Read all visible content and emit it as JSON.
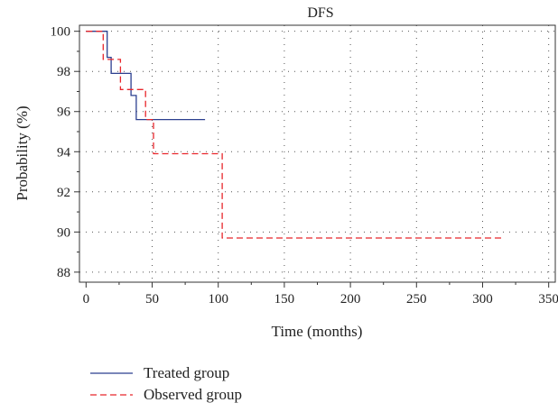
{
  "chart_data": {
    "type": "line",
    "title": "DFS",
    "xlabel": "Time (months)",
    "ylabel": "Probability (%)",
    "xlim": [
      -5,
      355
    ],
    "ylim": [
      87.5,
      100.3
    ],
    "x_ticks": [
      0,
      50,
      100,
      150,
      200,
      250,
      300,
      350
    ],
    "y_ticks": [
      88,
      90,
      92,
      94,
      96,
      98,
      100
    ],
    "x_tick_labels": [
      "0",
      "50",
      "100",
      "150",
      "200",
      "250",
      "300",
      "350"
    ],
    "y_tick_labels": [
      "88",
      "90",
      "92",
      "94",
      "96",
      "98",
      "100"
    ],
    "grid": true,
    "grid_style": "dotted",
    "legend_position": "bottom-left",
    "series": [
      {
        "name": "Treated group",
        "color": "#2b3f8f",
        "dash": "solid",
        "step_points": [
          [
            0,
            100
          ],
          [
            16,
            100
          ],
          [
            16,
            98.7
          ],
          [
            19,
            98.7
          ],
          [
            19,
            97.9
          ],
          [
            34,
            97.9
          ],
          [
            34,
            96.8
          ],
          [
            38,
            96.8
          ],
          [
            38,
            95.6
          ],
          [
            90,
            95.6
          ]
        ]
      },
      {
        "name": "Observed group",
        "color": "#e8262b",
        "dash": "dashed",
        "step_points": [
          [
            0,
            100
          ],
          [
            13,
            100
          ],
          [
            13,
            98.6
          ],
          [
            26,
            98.6
          ],
          [
            26,
            97.1
          ],
          [
            45,
            97.1
          ],
          [
            45,
            95.6
          ],
          [
            51,
            95.6
          ],
          [
            51,
            93.9
          ],
          [
            103,
            93.9
          ],
          [
            103,
            89.7
          ],
          [
            315,
            89.7
          ]
        ]
      }
    ]
  }
}
